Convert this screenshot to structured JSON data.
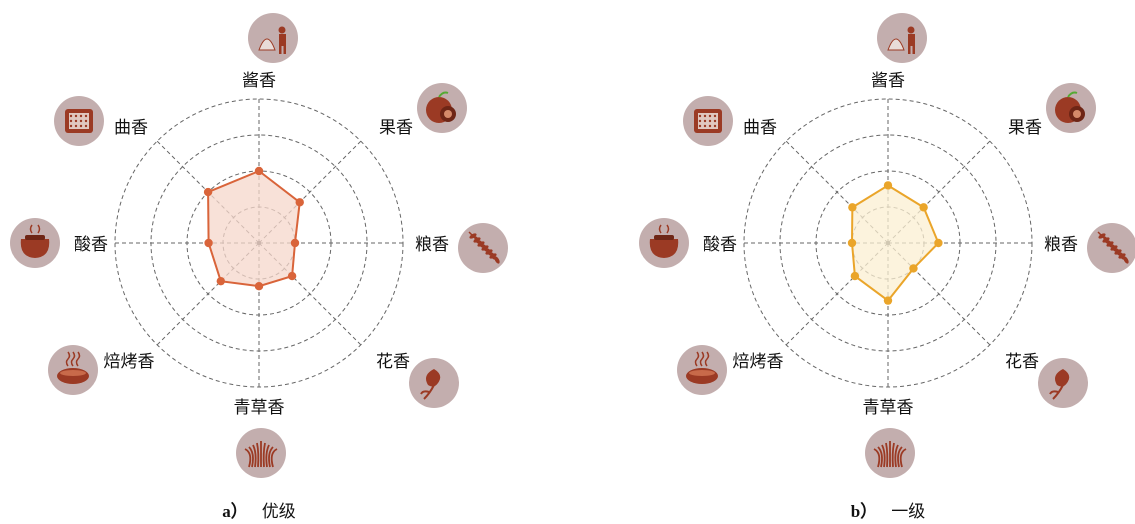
{
  "chart_data": [
    {
      "type": "radar",
      "caption_letter": "a）",
      "caption_text": "优级",
      "axes": [
        "酱香",
        "果香",
        "粮香",
        "花香",
        "青草香",
        "焙烤香",
        "酸香",
        "曲香"
      ],
      "rlim": [
        0,
        4
      ],
      "values": [
        2.0,
        1.6,
        1.0,
        1.3,
        1.2,
        1.5,
        1.4,
        2.0
      ],
      "color": "#d9643a",
      "fill": "#f6d7cb"
    },
    {
      "type": "radar",
      "caption_letter": "b）",
      "caption_text": "一级",
      "axes": [
        "酱香",
        "果香",
        "粮香",
        "花香",
        "青草香",
        "焙烤香",
        "酸香",
        "曲香"
      ],
      "rlim": [
        0,
        4
      ],
      "values": [
        1.6,
        1.4,
        1.4,
        1.0,
        1.6,
        1.3,
        1.0,
        1.4
      ],
      "color": "#eaa52a",
      "fill": "#fbefd2"
    }
  ],
  "icons": [
    "sauce-workers-icon",
    "fruit-icon",
    "grain-spike-icon",
    "flower-icon",
    "grass-icon",
    "baked-bread-icon",
    "sour-pot-icon",
    "qu-block-icon"
  ]
}
